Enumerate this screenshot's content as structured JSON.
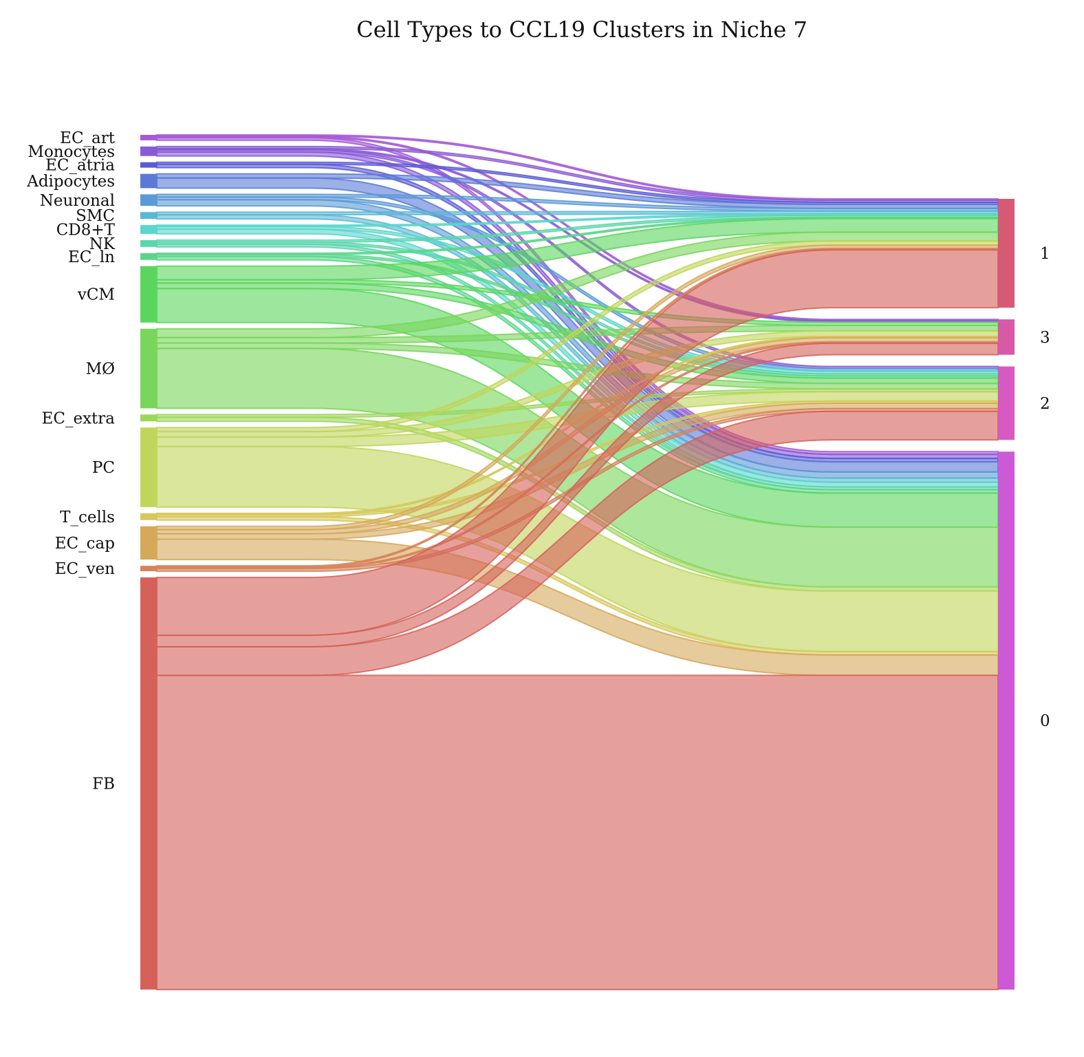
{
  "chart_data": {
    "type": "sankey",
    "title": "Cell Types to CCL19 Clusters in Niche 7",
    "sources": [
      {
        "name": "EC_art",
        "color": "#a55ad6"
      },
      {
        "name": "Monocytes",
        "color": "#8a5ad6"
      },
      {
        "name": "EC_atria",
        "color": "#5a5ad6"
      },
      {
        "name": "Adipocytes",
        "color": "#5a7ad6"
      },
      {
        "name": "Neuronal",
        "color": "#5a9ad6"
      },
      {
        "name": "SMC",
        "color": "#5ab8d6"
      },
      {
        "name": "CD8+T",
        "color": "#5ad6cc"
      },
      {
        "name": "NK",
        "color": "#5ad6ad"
      },
      {
        "name": "EC_ln",
        "color": "#5ad68a"
      },
      {
        "name": "vCM",
        "color": "#5ad65e"
      },
      {
        "name": "MØ",
        "color": "#78d65a"
      },
      {
        "name": "EC_extra",
        "color": "#9cd65a"
      },
      {
        "name": "PC",
        "color": "#c0d65a"
      },
      {
        "name": "T_cells",
        "color": "#d6c85a"
      },
      {
        "name": "EC_cap",
        "color": "#d6a85a"
      },
      {
        "name": "EC_ven",
        "color": "#d6825a"
      },
      {
        "name": "FB",
        "color": "#d6605a"
      }
    ],
    "targets": [
      {
        "name": "1",
        "color": "#d65a74"
      },
      {
        "name": "3",
        "color": "#d65aa6"
      },
      {
        "name": "2",
        "color": "#d65ac2"
      },
      {
        "name": "0",
        "color": "#cc5ad6"
      }
    ],
    "flows": [
      [
        "EC_art",
        "1",
        0.2
      ],
      [
        "EC_art",
        "3",
        0.2
      ],
      [
        "EC_art",
        "0",
        0.4
      ],
      [
        "Monocytes",
        "1",
        0.3
      ],
      [
        "Monocytes",
        "3",
        0.2
      ],
      [
        "Monocytes",
        "2",
        0.3
      ],
      [
        "Monocytes",
        "0",
        0.6
      ],
      [
        "EC_atria",
        "1",
        0.3
      ],
      [
        "EC_atria",
        "0",
        0.5
      ],
      [
        "Adipocytes",
        "1",
        0.6
      ],
      [
        "Adipocytes",
        "0",
        1.5
      ],
      [
        "Neuronal",
        "1",
        0.4
      ],
      [
        "Neuronal",
        "2",
        0.4
      ],
      [
        "Neuronal",
        "0",
        0.9
      ],
      [
        "SMC",
        "1",
        0.4
      ],
      [
        "SMC",
        "0",
        0.6
      ],
      [
        "CD8+T",
        "1",
        0.2
      ],
      [
        "CD8+T",
        "2",
        0.4
      ],
      [
        "CD8+T",
        "0",
        0.7
      ],
      [
        "NK",
        "1",
        0.3
      ],
      [
        "NK",
        "2",
        0.3
      ],
      [
        "NK",
        "0",
        0.4
      ],
      [
        "EC_ln",
        "1",
        0.2
      ],
      [
        "EC_ln",
        "2",
        0.3
      ],
      [
        "EC_ln",
        "0",
        0.5
      ],
      [
        "vCM",
        "1",
        2.0
      ],
      [
        "vCM",
        "3",
        0.5
      ],
      [
        "vCM",
        "2",
        0.8
      ],
      [
        "vCM",
        "0",
        5.0
      ],
      [
        "MØ",
        "1",
        1.3
      ],
      [
        "MØ",
        "3",
        0.8
      ],
      [
        "MØ",
        "2",
        0.8
      ],
      [
        "MØ",
        "0",
        8.8
      ],
      [
        "EC_extra",
        "2",
        0.4
      ],
      [
        "EC_extra",
        "0",
        0.6
      ],
      [
        "PC",
        "1",
        0.6
      ],
      [
        "PC",
        "3",
        0.8
      ],
      [
        "PC",
        "2",
        1.4
      ],
      [
        "PC",
        "0",
        8.9
      ],
      [
        "T_cells",
        "3",
        0.2
      ],
      [
        "T_cells",
        "2",
        0.3
      ],
      [
        "T_cells",
        "0",
        0.5
      ],
      [
        "EC_cap",
        "1",
        0.5
      ],
      [
        "EC_cap",
        "3",
        0.6
      ],
      [
        "EC_cap",
        "2",
        0.8
      ],
      [
        "EC_cap",
        "0",
        3.0
      ],
      [
        "EC_ven",
        "1",
        0.2
      ],
      [
        "EC_ven",
        "3",
        0.2
      ],
      [
        "EC_ven",
        "2",
        0.4
      ],
      [
        "FB",
        "1",
        8.5
      ],
      [
        "FB",
        "3",
        1.7
      ],
      [
        "FB",
        "2",
        4.2
      ],
      [
        "FB",
        "0",
        46.2
      ]
    ]
  }
}
